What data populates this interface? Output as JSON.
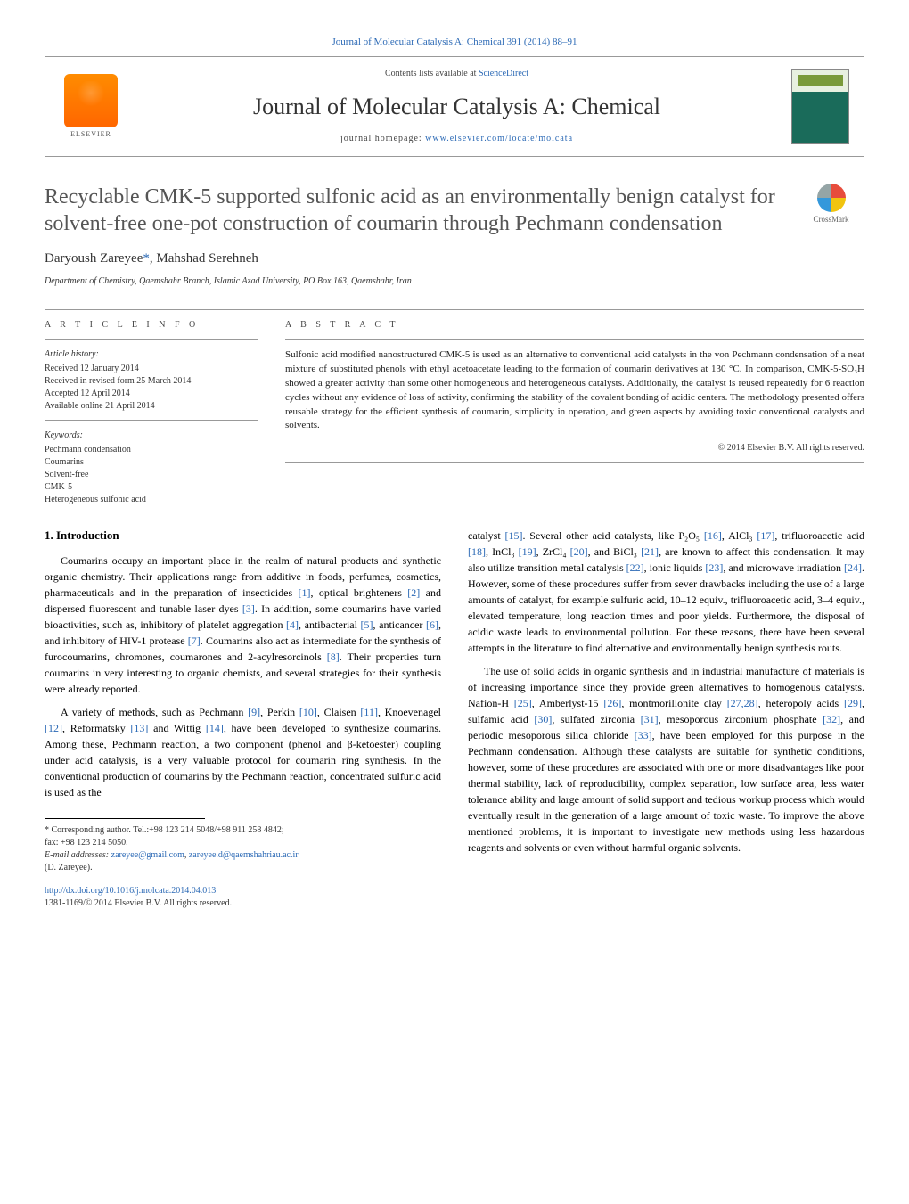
{
  "header": {
    "top_citation": "Journal of Molecular Catalysis A: Chemical 391 (2014) 88–91",
    "contents_prefix": "Contents lists available at ",
    "contents_link": "ScienceDirect",
    "journal_name": "Journal of Molecular Catalysis A: Chemical",
    "homepage_prefix": "journal homepage: ",
    "homepage_url": "www.elsevier.com/locate/molcata",
    "publisher": "ELSEVIER",
    "cover_label": "CATALYSIS"
  },
  "crossmark": {
    "label": "CrossMark"
  },
  "title": "Recyclable CMK-5 supported sulfonic acid as an environmentally benign catalyst for solvent-free one-pot construction of coumarin through Pechmann condensation",
  "authors": {
    "line": "Daryoush Zareyee",
    "corr_marker": "*",
    "author2": ", Mahshad Serehneh"
  },
  "affiliation": "Department of Chemistry, Qaemshahr Branch, Islamic Azad University, PO Box 163, Qaemshahr, Iran",
  "article_info": {
    "label": "A R T I C L E   I N F O",
    "history_head": "Article history:",
    "received": "Received 12 January 2014",
    "revised": "Received in revised form 25 March 2014",
    "accepted": "Accepted 12 April 2014",
    "online": "Available online 21 April 2014",
    "keywords_head": "Keywords:",
    "kw1": "Pechmann condensation",
    "kw2": "Coumarins",
    "kw3": "Solvent-free",
    "kw4": "CMK-5",
    "kw5": "Heterogeneous sulfonic acid"
  },
  "abstract": {
    "label": "A B S T R A C T",
    "text": "Sulfonic acid modified nanostructured CMK-5 is used as an alternative to conventional acid catalysts in the von Pechmann condensation of a neat mixture of substituted phenols with ethyl acetoacetate leading to the formation of coumarin derivatives at 130 °C. In comparison, CMK-5-SO₃H showed a greater activity than some other homogeneous and heterogeneous catalysts. Additionally, the catalyst is reused repeatedly for 6 reaction cycles without any evidence of loss of activity, confirming the stability of the covalent bonding of acidic centers. The methodology presented offers reusable strategy for the efficient synthesis of coumarin, simplicity in operation, and green aspects by avoiding toxic conventional catalysts and solvents.",
    "copyright": "© 2014 Elsevier B.V. All rights reserved."
  },
  "body": {
    "intro_heading": "1. Introduction",
    "p1a": "Coumarins occupy an important place in the realm of natural products and synthetic organic chemistry. Their applications range from additive in foods, perfumes, cosmetics, pharmaceuticals and in the preparation of insecticides ",
    "r1": "[1]",
    "p1b": ", optical brighteners ",
    "r2": "[2]",
    "p1c": " and dispersed fluorescent and tunable laser dyes ",
    "r3": "[3]",
    "p1d": ". In addition, some coumarins have varied bioactivities, such as, inhibitory of platelet aggregation ",
    "r4": "[4]",
    "p1e": ", antibacterial ",
    "r5": "[5]",
    "p1f": ", anticancer ",
    "r6": "[6]",
    "p1g": ", and inhibitory of HIV-1 protease ",
    "r7": "[7]",
    "p1h": ". Coumarins also act as intermediate for the synthesis of furocoumarins, chromones, coumarones and 2-acylresorcinols ",
    "r8": "[8]",
    "p1i": ". Their properties turn coumarins in very interesting to organic chemists, and several strategies for their synthesis were already reported.",
    "p2a": "A variety of methods, such as Pechmann ",
    "r9": "[9]",
    "p2b": ", Perkin ",
    "r10": "[10]",
    "p2c": ", Claisen ",
    "r11": "[11]",
    "p2d": ", Knoevenagel ",
    "r12": "[12]",
    "p2e": ", Reformatsky ",
    "r13": "[13]",
    "p2f": " and Wittig ",
    "r14": "[14]",
    "p2g": ", have been developed to synthesize coumarins. Among these, Pechmann reaction, a two component (phenol and β-ketoester) coupling under acid catalysis, is a very valuable protocol for coumarin ring synthesis. In the conventional production of coumarins by the Pechmann reaction, concentrated sulfuric acid is used as the",
    "p3a": "catalyst ",
    "r15": "[15]",
    "p3b": ". Several other acid catalysts, like P₂O₅ ",
    "r16": "[16]",
    "p3c": ", AlCl₃ ",
    "r17": "[17]",
    "p3d": ", trifluoroacetic acid ",
    "r18": "[18]",
    "p3e": ", InCl₃ ",
    "r19": "[19]",
    "p3f": ", ZrCl₄ ",
    "r20": "[20]",
    "p3g": ", and BiCl₃ ",
    "r21": "[21]",
    "p3h": ", are known to affect this condensation. It may also utilize transition metal catalysis ",
    "r22": "[22]",
    "p3i": ", ionic liquids ",
    "r23": "[23]",
    "p3j": ", and microwave irradiation ",
    "r24": "[24]",
    "p3k": ". However, some of these procedures suffer from sever drawbacks including the use of a large amounts of catalyst, for example sulfuric acid, 10–12 equiv., trifluoroacetic acid, 3–4 equiv., elevated temperature, long reaction times and poor yields. Furthermore, the disposal of acidic waste leads to environmental pollution. For these reasons, there have been several attempts in the literature to find alternative and environmentally benign synthesis routs.",
    "p4a": "The use of solid acids in organic synthesis and in industrial manufacture of materials is of increasing importance since they provide green alternatives to homogenous catalysts. Nafion-H ",
    "r25": "[25]",
    "p4b": ", Amberlyst-15 ",
    "r26": "[26]",
    "p4c": ", montmorillonite clay ",
    "r27": "[27,28]",
    "p4d": ", heteropoly acids ",
    "r29": "[29]",
    "p4e": ", sulfamic acid ",
    "r30": "[30]",
    "p4f": ", sulfated zirconia ",
    "r31": "[31]",
    "p4g": ", mesoporous zirconium phosphate ",
    "r32": "[32]",
    "p4h": ", and periodic mesoporous silica chloride ",
    "r33": "[33]",
    "p4i": ", have been employed for this purpose in the Pechmann condensation. Although these catalysts are suitable for synthetic conditions, however, some of these procedures are associated with one or more disadvantages like poor thermal stability, lack of reproducibility, complex separation, low surface area, less water tolerance ability and large amount of solid support and tedious workup process which would eventually result in the generation of a large amount of toxic waste. To improve the above mentioned problems, it is important to investigate new methods using less hazardous reagents and solvents or even without harmful organic solvents."
  },
  "footer": {
    "corr_label": "* Corresponding author. Tel.:+98 123 214 5048/+98 911 258 4842;",
    "fax": "fax: +98 123 214 5050.",
    "email_label": "E-mail addresses: ",
    "email1": "zareyee@gmail.com",
    "email_sep": ", ",
    "email2": "zareyee.d@qaemshahriau.ac.ir",
    "email_suffix": "(D. Zareyee).",
    "doi": "http://dx.doi.org/10.1016/j.molcata.2014.04.013",
    "issn": "1381-1169/© 2014 Elsevier B.V. All rights reserved."
  }
}
